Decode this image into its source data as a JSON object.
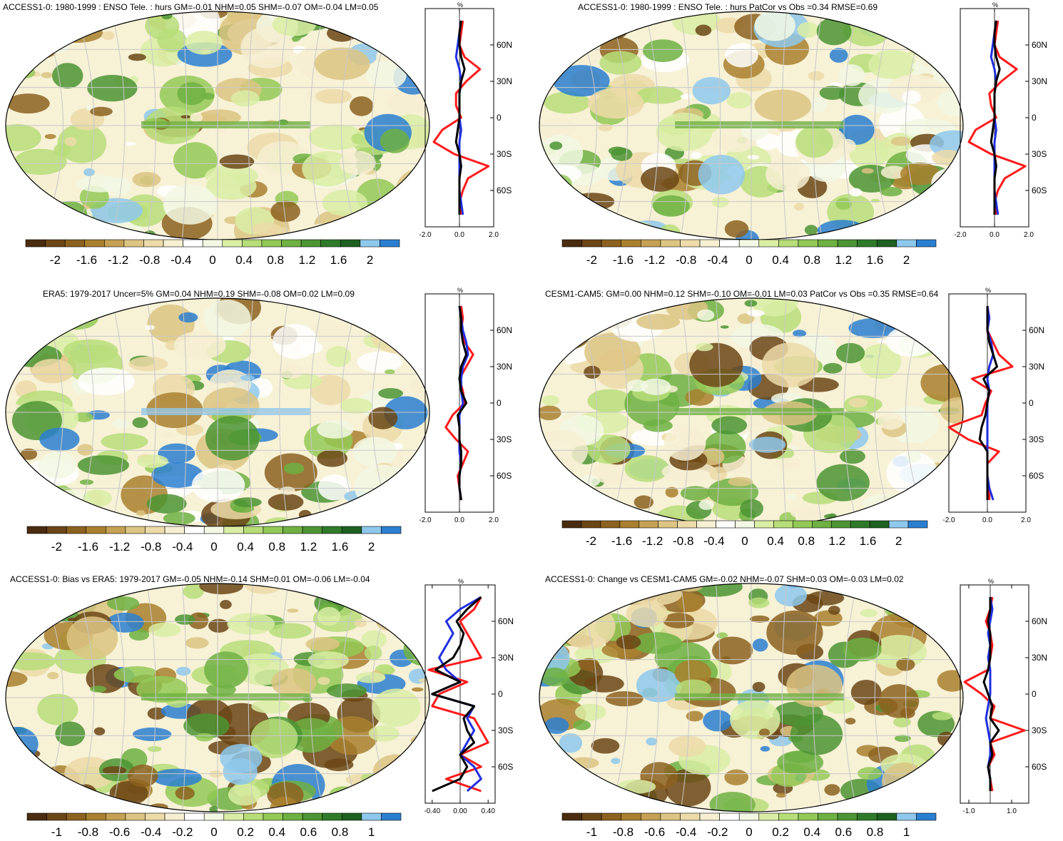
{
  "palette": [
    "#4a2c0f",
    "#6b4616",
    "#8c6220",
    "#a9802f",
    "#c4a154",
    "#dcc482",
    "#ecdba8",
    "#f6efd2",
    "#ffffff",
    "#f2f8e4",
    "#d9eda5",
    "#b7dd79",
    "#93c956",
    "#6fb043",
    "#4c9434",
    "#2f7a2a",
    "#1d6120",
    "#8ec8ec",
    "#2b7fd0"
  ],
  "colors": {
    "black": "#000000",
    "red": "#ff1a1a",
    "blue": "#1f2fe0",
    "grid": "#c8c8c8"
  },
  "chart_data": [
    {
      "type": "heatmap",
      "title": "ACCESS1-0: 1980-1999 : ENSO Tele. : hurs GM=-0.01 NHM=0.05 SHM=-0.07 OM=-0.04 LM=0.05",
      "colorbar_ticks": [
        "-2",
        "-1.6",
        "-1.2",
        "-0.8",
        "-0.4",
        "0",
        "0.4",
        "0.8",
        "1.2",
        "1.6",
        "2"
      ],
      "colorbar_range": [
        -2,
        2
      ],
      "zonal": {
        "unit": "%",
        "xlim": [
          -2,
          2
        ],
        "xticks": [
          "-2.0",
          "0.0",
          "2.0"
        ],
        "lat_ticks": [
          "60N",
          "30N",
          "0",
          "30S",
          "60S"
        ],
        "lat": [
          80,
          70,
          60,
          50,
          40,
          30,
          20,
          10,
          0,
          -10,
          -20,
          -30,
          -40,
          -50,
          -60,
          -70,
          -80
        ],
        "series": [
          {
            "color": "red",
            "values": [
              0.2,
              0.1,
              0.0,
              0.3,
              1.2,
              0.4,
              -0.2,
              -0.2,
              0.1,
              -1.0,
              -1.5,
              -0.3,
              1.7,
              0.5,
              0.2,
              0.0,
              0.1
            ]
          },
          {
            "color": "blue",
            "values": [
              0.1,
              0.0,
              -0.1,
              -0.2,
              0.0,
              0.1,
              0.0,
              0.0,
              0.0,
              0.1,
              0.0,
              0.0,
              0.0,
              0.0,
              0.0,
              0.1,
              0.2
            ]
          },
          {
            "color": "black",
            "values": [
              0.1,
              0.0,
              0.0,
              0.1,
              0.3,
              0.1,
              0.0,
              0.0,
              0.0,
              -0.1,
              -0.2,
              0.0,
              0.1,
              0.0,
              0.0,
              0.0,
              0.0
            ]
          }
        ]
      }
    },
    {
      "type": "heatmap",
      "title": "ACCESS1-0: 1980-1999 : ENSO Tele. : hurs PatCor vs Obs =0.34 RMSE=0.69",
      "colorbar_ticks": [
        "-2",
        "-1.6",
        "-1.2",
        "-0.8",
        "-0.4",
        "0",
        "0.4",
        "0.8",
        "1.2",
        "1.6",
        "2"
      ],
      "colorbar_range": [
        -2,
        2
      ],
      "zonal": {
        "unit": "%",
        "xlim": [
          -2,
          2
        ],
        "xticks": [
          "-2.0",
          "0.0",
          "2.0"
        ],
        "lat_ticks": [
          "60N",
          "30N",
          "0",
          "30S",
          "60S"
        ],
        "lat": [
          80,
          70,
          60,
          50,
          40,
          30,
          20,
          10,
          0,
          -10,
          -20,
          -30,
          -40,
          -50,
          -60,
          -70,
          -80
        ],
        "series": [
          {
            "color": "red",
            "values": [
              0.2,
              0.1,
              0.0,
              0.3,
              1.3,
              0.4,
              -0.3,
              -0.2,
              0.1,
              -1.1,
              -1.5,
              -0.2,
              1.8,
              0.6,
              0.2,
              0.0,
              0.1
            ]
          },
          {
            "color": "blue",
            "values": [
              0.1,
              0.0,
              -0.1,
              -0.2,
              0.0,
              0.1,
              0.0,
              0.0,
              0.0,
              0.1,
              0.0,
              0.0,
              0.0,
              0.0,
              0.0,
              0.1,
              0.2
            ]
          },
          {
            "color": "black",
            "values": [
              0.1,
              0.0,
              0.0,
              0.1,
              0.3,
              0.1,
              0.0,
              0.0,
              0.0,
              -0.1,
              -0.2,
              0.0,
              0.1,
              0.0,
              0.0,
              0.0,
              0.0
            ]
          }
        ]
      }
    },
    {
      "type": "heatmap",
      "title": "ERA5: 1979-2017 Uncer=5% GM=0.04 NHM=0.19 SHM=-0.08 OM=0.02 LM=0.09",
      "colorbar_ticks": [
        "-2",
        "-1.6",
        "-1.2",
        "-0.8",
        "-0.4",
        "0",
        "0.4",
        "0.8",
        "1.2",
        "1.6",
        "2"
      ],
      "colorbar_range": [
        -2,
        2
      ],
      "zonal": {
        "unit": "%",
        "xlim": [
          -2,
          2
        ],
        "xticks": [
          "-2.0",
          "0.0",
          "2.0"
        ],
        "lat_ticks": [
          "60N",
          "30N",
          "0",
          "30S",
          "60S"
        ],
        "lat": [
          80,
          70,
          60,
          50,
          40,
          30,
          20,
          10,
          0,
          -10,
          -20,
          -30,
          -40,
          -50,
          -60,
          -70,
          -80
        ],
        "series": [
          {
            "color": "red",
            "values": [
              0.1,
              0.2,
              0.1,
              0.3,
              0.8,
              0.4,
              0.0,
              0.2,
              0.3,
              -0.4,
              -0.8,
              -0.2,
              0.5,
              0.2,
              -0.1,
              0.0,
              0.1
            ]
          },
          {
            "color": "blue",
            "values": [
              0.0,
              0.1,
              0.2,
              0.4,
              0.5,
              0.2,
              0.1,
              0.1,
              0.2,
              0.0,
              0.0,
              0.0,
              0.0,
              0.1,
              0.0,
              0.0,
              0.1
            ]
          },
          {
            "color": "black",
            "values": [
              0.0,
              0.1,
              0.1,
              0.2,
              0.4,
              0.1,
              0.0,
              0.1,
              0.4,
              -0.1,
              0.0,
              0.0,
              0.1,
              0.1,
              0.0,
              0.0,
              0.1
            ]
          }
        ]
      }
    },
    {
      "type": "heatmap",
      "title": "CESM1-CAM5: GM=0.00 NHM=0.12 SHM=-0.10 OM=-0.01 LM=0.03 PatCor vs Obs =0.35 RMSE=0.64",
      "colorbar_ticks": [
        "-2",
        "-1.6",
        "-1.2",
        "-0.8",
        "-0.4",
        "0",
        "0.4",
        "0.8",
        "1.2",
        "1.6",
        "2"
      ],
      "colorbar_range": [
        -2,
        2
      ],
      "zonal": {
        "unit": "%",
        "xlim": [
          -2,
          2
        ],
        "xticks": [
          "-2.0",
          "0.0",
          "2.0"
        ],
        "lat_ticks": [
          "60N",
          "30N",
          "0",
          "30S",
          "60S"
        ],
        "lat": [
          80,
          70,
          60,
          50,
          40,
          30,
          20,
          10,
          0,
          -10,
          -20,
          -30,
          -40,
          -50,
          -60,
          -70,
          -80
        ],
        "series": [
          {
            "color": "red",
            "values": [
              0.0,
              0.1,
              0.0,
              0.3,
              0.6,
              1.3,
              -0.8,
              0.2,
              -0.1,
              -0.3,
              -2.0,
              -1.0,
              0.6,
              0.0,
              0.0,
              0.1,
              0.1
            ]
          },
          {
            "color": "blue",
            "values": [
              0.0,
              0.1,
              0.0,
              0.2,
              0.3,
              0.1,
              0.0,
              0.1,
              0.0,
              0.0,
              0.0,
              0.0,
              0.0,
              0.0,
              0.0,
              0.1,
              0.3
            ]
          },
          {
            "color": "black",
            "values": [
              0.0,
              0.0,
              0.0,
              0.1,
              0.3,
              0.5,
              -0.2,
              0.1,
              0.0,
              -0.1,
              -0.3,
              -0.4,
              0.0,
              0.0,
              0.0,
              0.0,
              0.0
            ]
          }
        ]
      }
    },
    {
      "type": "heatmap",
      "title": "ACCESS1-0: Bias vs ERA5: 1979-2017 GM=-0.05 NHM=-0.14 SHM=0.01 OM=-0.06 LM=-0.04",
      "colorbar_ticks": [
        "-1",
        "-0.8",
        "-0.6",
        "-0.4",
        "-0.2",
        "0",
        "0.2",
        "0.4",
        "0.6",
        "0.8",
        "1"
      ],
      "colorbar_range": [
        -1,
        1
      ],
      "zonal": {
        "unit": "%",
        "xlim": [
          -0.5,
          0.5
        ],
        "xticks": [
          "-0.40",
          "0.00",
          "0.40"
        ],
        "lat_ticks": [
          "60N",
          "30N",
          "0",
          "30S",
          "60S"
        ],
        "lat": [
          80,
          70,
          60,
          50,
          40,
          30,
          20,
          10,
          0,
          -10,
          -20,
          -30,
          -40,
          -50,
          -60,
          -70,
          -80
        ],
        "series": [
          {
            "color": "red",
            "values": [
              0.3,
              0.2,
              0.0,
              0.1,
              0.2,
              0.3,
              -0.45,
              0.1,
              -0.3,
              -0.4,
              0.2,
              0.3,
              0.4,
              0.0,
              0.3,
              -0.2,
              0.3
            ]
          },
          {
            "color": "blue",
            "values": [
              0.3,
              0.0,
              -0.2,
              -0.1,
              -0.2,
              -0.3,
              -0.2,
              0.0,
              -0.4,
              0.2,
              0.1,
              0.2,
              0.1,
              0.0,
              0.2,
              0.3,
              0.1
            ]
          },
          {
            "color": "black",
            "values": [
              0.3,
              0.1,
              -0.05,
              0.05,
              0.0,
              -0.1,
              -0.35,
              0.0,
              -0.4,
              0.2,
              0.05,
              0.1,
              0.2,
              0.0,
              0.1,
              0.0,
              -0.4
            ]
          }
        ]
      }
    },
    {
      "type": "heatmap",
      "title": "ACCESS1-0: Change vs CESM1-CAM5 GM=-0.02 NHM=-0.07 SHM=0.03 OM=-0.03 LM=0.02",
      "colorbar_ticks": [
        "-1",
        "-0.8",
        "-0.6",
        "-0.4",
        "-0.2",
        "0",
        "0.2",
        "0.4",
        "0.6",
        "0.8",
        "1"
      ],
      "colorbar_range": [
        -1,
        1
      ],
      "zonal": {
        "unit": "%",
        "xlim": [
          -1.4,
          1.8
        ],
        "xticks": [
          "-1.0",
          "1.0"
        ],
        "lat_ticks": [
          "60N",
          "30N",
          "0",
          "30S",
          "60S"
        ],
        "lat": [
          80,
          70,
          60,
          50,
          40,
          30,
          20,
          10,
          0,
          -10,
          -20,
          -30,
          -40,
          -50,
          -60,
          -70,
          -80
        ],
        "series": [
          {
            "color": "red",
            "values": [
              0.1,
              0.0,
              -0.2,
              0.0,
              0.1,
              0.0,
              -0.1,
              -1.2,
              -0.4,
              0.2,
              0.0,
              1.6,
              0.0,
              0.2,
              -0.1,
              0.0,
              0.1
            ]
          },
          {
            "color": "blue",
            "values": [
              0.0,
              0.1,
              0.0,
              -0.1,
              0.0,
              -0.1,
              0.0,
              0.0,
              0.0,
              -0.1,
              -0.2,
              -0.1,
              0.0,
              0.0,
              -0.1,
              0.0,
              0.0
            ]
          },
          {
            "color": "black",
            "values": [
              0.0,
              0.0,
              -0.1,
              0.0,
              0.0,
              0.0,
              -0.1,
              -0.3,
              -0.1,
              0.1,
              0.0,
              0.4,
              0.0,
              0.1,
              -0.1,
              0.0,
              0.0
            ]
          }
        ]
      }
    }
  ]
}
